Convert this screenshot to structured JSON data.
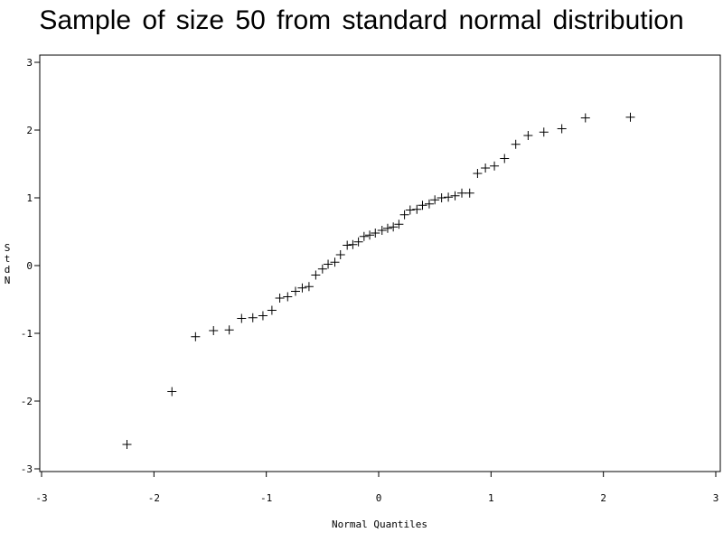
{
  "chart_data": {
    "type": "scatter",
    "title": "Sample of size 50 from standard normal distribution",
    "xlabel": "Normal Quantiles",
    "ylabel": "StdN",
    "ylabel_chars": [
      "S",
      "t",
      "d",
      "N"
    ],
    "xlim": [
      -3,
      3
    ],
    "ylim": [
      -3,
      3
    ],
    "xticks": [
      -3,
      -2,
      -1,
      0,
      1,
      2,
      3
    ],
    "yticks": [
      -3,
      -2,
      -1,
      0,
      1,
      2,
      3
    ],
    "xtick_labels": [
      "-3",
      "-2",
      "-1",
      "0",
      "1",
      "2",
      "3"
    ],
    "ytick_labels": [
      "-3",
      "-2",
      "-1",
      "0",
      "1",
      "2",
      "3"
    ],
    "grid": false,
    "marker": "plus",
    "marker_color": "#000000",
    "points": [
      [
        -2.24,
        -2.64
      ],
      [
        -1.84,
        -1.86
      ],
      [
        -1.63,
        -1.05
      ],
      [
        -1.47,
        -0.96
      ],
      [
        -1.33,
        -0.95
      ],
      [
        -1.22,
        -0.78
      ],
      [
        -1.12,
        -0.77
      ],
      [
        -1.03,
        -0.74
      ],
      [
        -0.95,
        -0.66
      ],
      [
        -0.88,
        -0.48
      ],
      [
        -0.81,
        -0.46
      ],
      [
        -0.74,
        -0.38
      ],
      [
        -0.68,
        -0.33
      ],
      [
        -0.62,
        -0.31
      ],
      [
        -0.56,
        -0.14
      ],
      [
        -0.5,
        -0.05
      ],
      [
        -0.45,
        0.02
      ],
      [
        -0.39,
        0.05
      ],
      [
        -0.34,
        0.16
      ],
      [
        -0.28,
        0.3
      ],
      [
        -0.23,
        0.31
      ],
      [
        -0.18,
        0.35
      ],
      [
        -0.13,
        0.43
      ],
      [
        -0.08,
        0.45
      ],
      [
        -0.03,
        0.48
      ],
      [
        0.03,
        0.52
      ],
      [
        0.08,
        0.55
      ],
      [
        0.13,
        0.57
      ],
      [
        0.18,
        0.61
      ],
      [
        0.23,
        0.75
      ],
      [
        0.28,
        0.82
      ],
      [
        0.34,
        0.83
      ],
      [
        0.39,
        0.89
      ],
      [
        0.45,
        0.91
      ],
      [
        0.5,
        0.97
      ],
      [
        0.56,
        1.0
      ],
      [
        0.62,
        1.01
      ],
      [
        0.68,
        1.03
      ],
      [
        0.74,
        1.07
      ],
      [
        0.81,
        1.07
      ],
      [
        0.88,
        1.36
      ],
      [
        0.95,
        1.44
      ],
      [
        1.03,
        1.47
      ],
      [
        1.12,
        1.58
      ],
      [
        1.22,
        1.79
      ],
      [
        1.33,
        1.92
      ],
      [
        1.47,
        1.97
      ],
      [
        1.63,
        2.02
      ],
      [
        1.84,
        2.18
      ],
      [
        2.24,
        2.19
      ]
    ]
  }
}
